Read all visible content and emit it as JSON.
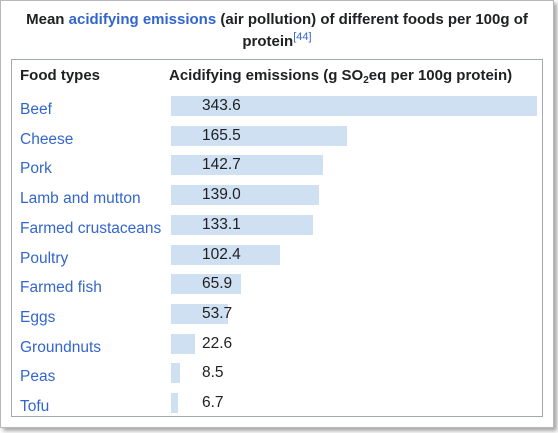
{
  "caption": {
    "prefix": "Mean ",
    "link": "acidifying emissions",
    "suffix": " (air pollution) of different foods per 100g of protein",
    "ref": "[44]"
  },
  "table": {
    "header_food": "Food types",
    "header_value_prefix": "Acidifying emissions (g SO",
    "header_value_sub": "2",
    "header_value_suffix": "eq per 100g protein)",
    "max_value": 343.6,
    "rows": [
      {
        "food": "Beef",
        "value": "343.6"
      },
      {
        "food": "Cheese",
        "value": "165.5"
      },
      {
        "food": "Pork",
        "value": "142.7"
      },
      {
        "food": "Lamb and mutton",
        "value": "139.0"
      },
      {
        "food": "Farmed crustaceans",
        "value": "133.1"
      },
      {
        "food": "Poultry",
        "value": "102.4"
      },
      {
        "food": "Farmed fish",
        "value": "65.9"
      },
      {
        "food": "Eggs",
        "value": "53.7"
      },
      {
        "food": "Groundnuts",
        "value": "22.6"
      },
      {
        "food": "Peas",
        "value": "8.5"
      },
      {
        "food": "Tofu",
        "value": "6.7"
      }
    ]
  },
  "colors": {
    "link": "#3366cc",
    "bar": "#cfe0f3",
    "border": "#a2a9b1"
  }
}
